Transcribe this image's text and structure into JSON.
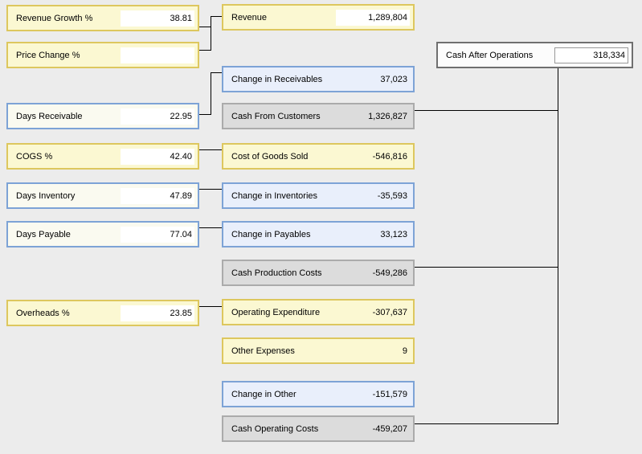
{
  "colors": {
    "background": "#ececec",
    "input_fill": "#fbf8d2",
    "input_border": "#ddc75e",
    "calc_blue_fill": "#e9effb",
    "calc_blue_border": "#7da3d6",
    "pale_input_fill": "#fafaf0",
    "subtotal_fill": "#dcdcdc",
    "subtotal_border": "#ababab",
    "result_fill": "#fcfcfc",
    "result_border": "#6f6f6f",
    "connector": "#000000"
  },
  "boxes": [
    {
      "id": "revenue-growth",
      "label": "Revenue Growth %",
      "value": "38.81",
      "kind": "input_yellow"
    },
    {
      "id": "price-change",
      "label": "Price Change %",
      "value": "",
      "kind": "input_yellow"
    },
    {
      "id": "days-receivable",
      "label": "Days Receivable",
      "value": "22.95",
      "kind": "input_blue"
    },
    {
      "id": "cogs",
      "label": "COGS %",
      "value": "42.40",
      "kind": "input_yellow"
    },
    {
      "id": "days-inventory",
      "label": "Days Inventory",
      "value": "47.89",
      "kind": "input_blue"
    },
    {
      "id": "days-payable",
      "label": "Days Payable",
      "value": "77.04",
      "kind": "input_blue"
    },
    {
      "id": "overheads",
      "label": "Overheads %",
      "value": "23.85",
      "kind": "input_yellow"
    },
    {
      "id": "revenue",
      "label": "Revenue",
      "value": "1,289,804",
      "kind": "calc_yellow_field"
    },
    {
      "id": "change-in-receivables",
      "label": "Change in Receivables",
      "value": "37,023",
      "kind": "calc_blue"
    },
    {
      "id": "cash-from-customers",
      "label": "Cash From Customers",
      "value": "1,326,827",
      "kind": "total_gray"
    },
    {
      "id": "cost-of-goods-sold",
      "label": "Cost of Goods Sold",
      "value": "-546,816",
      "kind": "calc_yellow"
    },
    {
      "id": "change-in-inventories",
      "label": "Change in Inventories",
      "value": "-35,593",
      "kind": "calc_blue"
    },
    {
      "id": "change-in-payables",
      "label": "Change in Payables",
      "value": "33,123",
      "kind": "calc_blue"
    },
    {
      "id": "cash-production-costs",
      "label": "Cash Production Costs",
      "value": "-549,286",
      "kind": "total_gray"
    },
    {
      "id": "operating-expenditure",
      "label": "Operating Expenditure",
      "value": "-307,637",
      "kind": "calc_yellow"
    },
    {
      "id": "other-expenses",
      "label": "Other Expenses",
      "value": "9",
      "kind": "calc_yellow"
    },
    {
      "id": "change-in-other",
      "label": "Change in Other",
      "value": "-151,579",
      "kind": "calc_blue"
    },
    {
      "id": "cash-operating-costs",
      "label": "Cash Operating Costs",
      "value": "-459,207",
      "kind": "total_gray"
    },
    {
      "id": "cash-after-operations",
      "label": "Cash After Operations",
      "value": "318,334",
      "kind": "result"
    }
  ]
}
